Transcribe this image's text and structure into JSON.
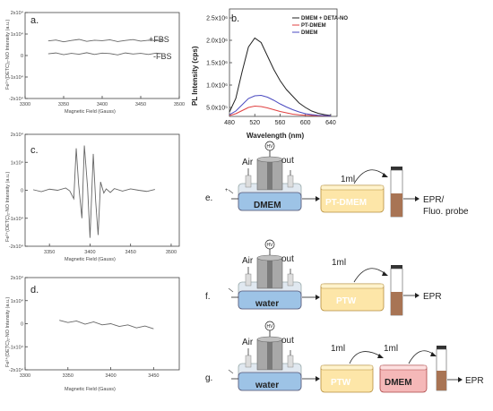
{
  "panels": {
    "a": {
      "label": "a.",
      "ylabel": "Fe²⁺(DETC)₂-NO Intensity (a.u.)",
      "xlabel": "Magnetic Field (Gauss)",
      "series_labels": [
        "+FBS",
        "-FBS"
      ]
    },
    "c": {
      "label": "c.",
      "ylabel": "Fe²⁺(DETC)₂-NO Intensity (a.u.)",
      "xlabel": "Magnetic Field (Gauss)"
    },
    "d": {
      "label": "d.",
      "ylabel": "Fe²⁺(DETC)₂-NO Intensity (a.u.)",
      "xlabel": "Magnetic Field (Gauss)"
    },
    "b": {
      "label": "b.",
      "ylabel": "PL Intensity (cps)",
      "xlabel": "Wavelength (nm)"
    },
    "e": {
      "label": "e.",
      "medium": "DMEM",
      "product": "PT-DMEM",
      "volume": "1ml",
      "air": "Air",
      "out": "out",
      "hv": "HV",
      "result": "EPR/\nFluo. probe"
    },
    "f": {
      "label": "f.",
      "medium": "water",
      "product": "PTW",
      "volume": "1ml",
      "air": "Air",
      "out": "out",
      "hv": "HV",
      "result": "EPR"
    },
    "g": {
      "label": "g.",
      "medium": "water",
      "product": "PTW",
      "second": "DMEM",
      "volume1": "1ml",
      "volume2": "1ml",
      "air": "Air",
      "out": "out",
      "hv": "HV",
      "result": "EPR"
    }
  },
  "chart_data": [
    {
      "type": "line",
      "panel": "a",
      "x_ticks": [
        3300,
        3350,
        3400,
        3450,
        3500
      ],
      "y_ticks": [
        "-2x10⁴",
        "-1x10⁴",
        "0",
        "1x10⁴",
        "2x10⁴"
      ],
      "xlim": [
        3300,
        3500
      ],
      "ylim": [
        -2,
        2
      ],
      "y_unit": "x10⁴",
      "series": [
        {
          "name": "+FBS",
          "x": [
            3330,
            3340,
            3350,
            3360,
            3370,
            3380,
            3390,
            3400,
            3410,
            3420,
            3430,
            3440,
            3450,
            3460,
            3470,
            3480
          ],
          "values": [
            0.68,
            0.72,
            0.64,
            0.7,
            0.75,
            0.66,
            0.71,
            0.69,
            0.73,
            0.65,
            0.7,
            0.74,
            0.67,
            0.71,
            0.69,
            0.72
          ]
        },
        {
          "name": "-FBS",
          "x": [
            3330,
            3340,
            3350,
            3360,
            3370,
            3380,
            3390,
            3400,
            3410,
            3420,
            3430,
            3440,
            3450,
            3460,
            3470,
            3480
          ],
          "values": [
            0.08,
            0.12,
            0.04,
            0.1,
            0.06,
            0.13,
            0.05,
            0.11,
            0.09,
            0.03,
            0.12,
            0.07,
            0.1,
            0.05,
            0.11,
            0.08
          ]
        }
      ]
    },
    {
      "type": "line",
      "panel": "c",
      "x_ticks": [
        3350,
        3400,
        3450,
        3500
      ],
      "y_ticks": [
        "-2x10⁴",
        "-1x10⁴",
        "0",
        "1x10⁴",
        "2x10⁴"
      ],
      "xlim": [
        3320,
        3510
      ],
      "ylim": [
        -2,
        2
      ],
      "y_unit": "x10⁴",
      "series": [
        {
          "name": "",
          "x": [
            3330,
            3340,
            3350,
            3360,
            3370,
            3375,
            3380,
            3383,
            3386,
            3390,
            3393,
            3397,
            3400,
            3404,
            3407,
            3410,
            3413,
            3417,
            3420,
            3425,
            3430,
            3440,
            3450,
            3460,
            3470,
            3480
          ],
          "values": [
            0.02,
            -0.05,
            0.04,
            0.0,
            0.08,
            -0.02,
            -0.3,
            1.5,
            0.2,
            -1.0,
            1.6,
            0.1,
            -1.7,
            1.3,
            -0.4,
            -1.6,
            0.3,
            -0.1,
            0.05,
            -0.08,
            0.06,
            -0.03,
            0.05,
            0.0,
            -0.04,
            0.03
          ]
        }
      ]
    },
    {
      "type": "line",
      "panel": "d",
      "x_ticks": [
        3300,
        3350,
        3400,
        3450
      ],
      "y_ticks": [
        "-2x10⁴",
        "-1x10⁴",
        "0",
        "1x10⁴",
        "2x10⁴"
      ],
      "xlim": [
        3300,
        3480
      ],
      "ylim": [
        -2,
        2
      ],
      "y_unit": "x10⁴",
      "series": [
        {
          "name": "",
          "x": [
            3340,
            3350,
            3360,
            3370,
            3380,
            3390,
            3400,
            3410,
            3420,
            3430,
            3440,
            3450
          ],
          "values": [
            0.15,
            0.05,
            0.12,
            -0.02,
            0.08,
            -0.05,
            0.0,
            -0.12,
            -0.05,
            -0.18,
            -0.1,
            -0.22
          ]
        }
      ]
    },
    {
      "type": "line",
      "panel": "b",
      "x_ticks": [
        480,
        520,
        560,
        600,
        640
      ],
      "y_ticks": [
        "5.0x10⁵",
        "1.0x10⁶",
        "1.5x10⁶",
        "2.0x10⁶",
        "2.5x10⁶"
      ],
      "xlim": [
        480,
        650
      ],
      "ylim": [
        300000,
        2700000
      ],
      "legend_position": "top-right",
      "series": [
        {
          "name": "DMEM + DETA-NO",
          "color": "#222222",
          "x": [
            480,
            490,
            500,
            510,
            520,
            530,
            540,
            550,
            560,
            570,
            580,
            590,
            600,
            610,
            620,
            630,
            640
          ],
          "values": [
            400000,
            700000,
            1300000,
            1850000,
            2050000,
            1950000,
            1650000,
            1350000,
            1100000,
            900000,
            750000,
            600000,
            500000,
            420000,
            370000,
            340000,
            320000
          ]
        },
        {
          "name": "PT-DMEM",
          "color": "#e04040",
          "x": [
            480,
            490,
            500,
            510,
            520,
            530,
            540,
            550,
            560,
            570,
            580,
            590,
            600,
            610,
            620,
            630,
            640
          ],
          "values": [
            320000,
            360000,
            430000,
            500000,
            530000,
            520000,
            490000,
            450000,
            410000,
            380000,
            350000,
            335000,
            325000,
            320000,
            315000,
            312000,
            310000
          ]
        },
        {
          "name": "DMEM",
          "color": "#4a4ac0",
          "x": [
            480,
            490,
            500,
            510,
            520,
            530,
            540,
            550,
            560,
            570,
            580,
            590,
            600,
            610,
            620,
            630,
            640
          ],
          "values": [
            340000,
            420000,
            560000,
            700000,
            760000,
            770000,
            730000,
            660000,
            580000,
            510000,
            450000,
            400000,
            360000,
            340000,
            325000,
            318000,
            312000
          ]
        }
      ]
    }
  ]
}
